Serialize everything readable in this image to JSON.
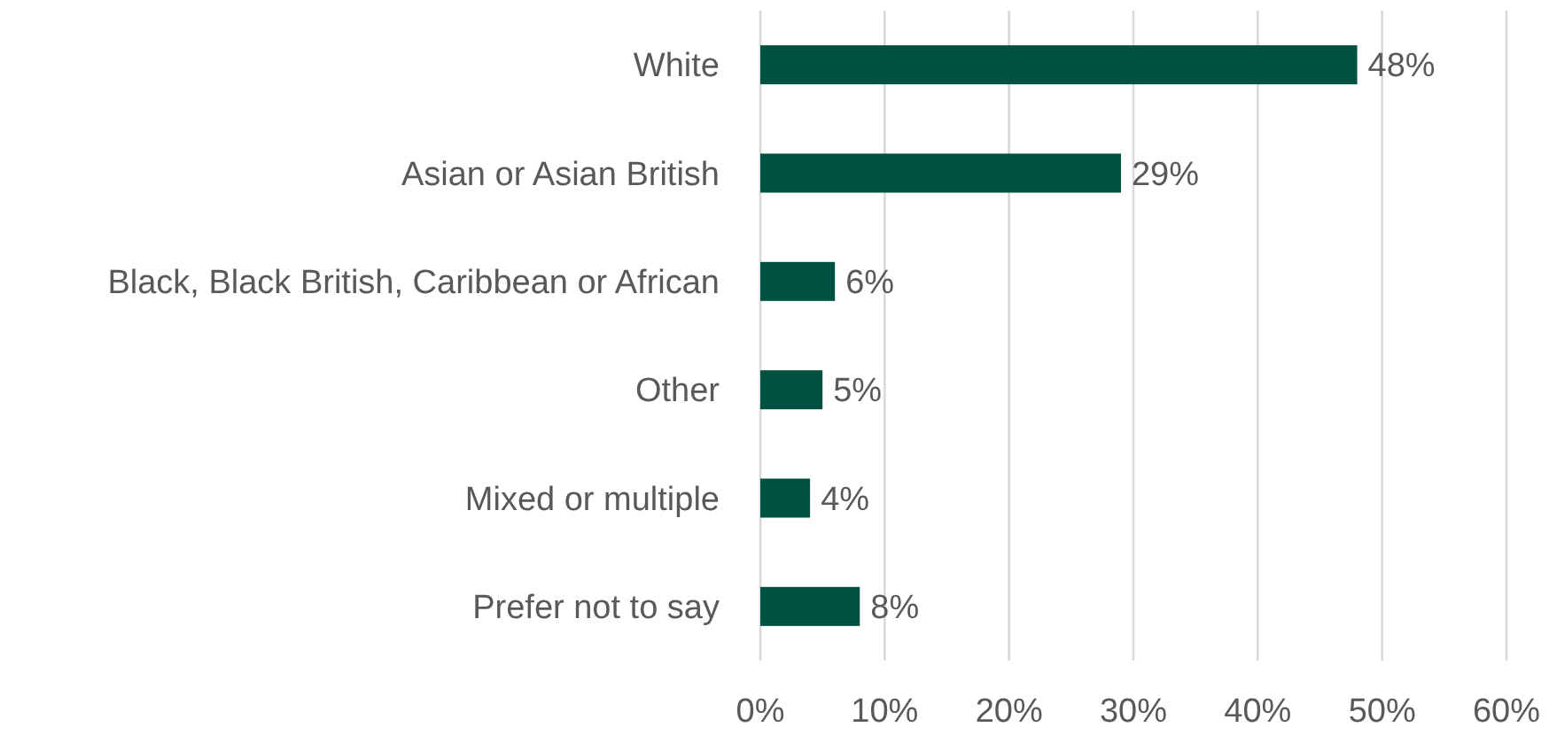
{
  "chart_data": {
    "type": "bar",
    "orientation": "horizontal",
    "categories": [
      "White",
      "Asian or Asian British",
      "Black, Black British, Caribbean or African",
      "Other",
      "Mixed or multiple",
      "Prefer not to say"
    ],
    "values": [
      48,
      29,
      6,
      5,
      4,
      8
    ],
    "value_labels": [
      "48%",
      "29%",
      "6%",
      "5%",
      "4%",
      "8%"
    ],
    "color": "#00513f",
    "xlim": [
      0,
      60
    ],
    "xticks": [
      {
        "value": 0,
        "label": "0%"
      },
      {
        "value": 10,
        "label": "10%"
      },
      {
        "value": 20,
        "label": "20%"
      },
      {
        "value": 30,
        "label": "30%"
      },
      {
        "value": 40,
        "label": "40%"
      },
      {
        "value": 50,
        "label": "50%"
      },
      {
        "value": 60,
        "label": "60%"
      }
    ],
    "grid": "x"
  }
}
